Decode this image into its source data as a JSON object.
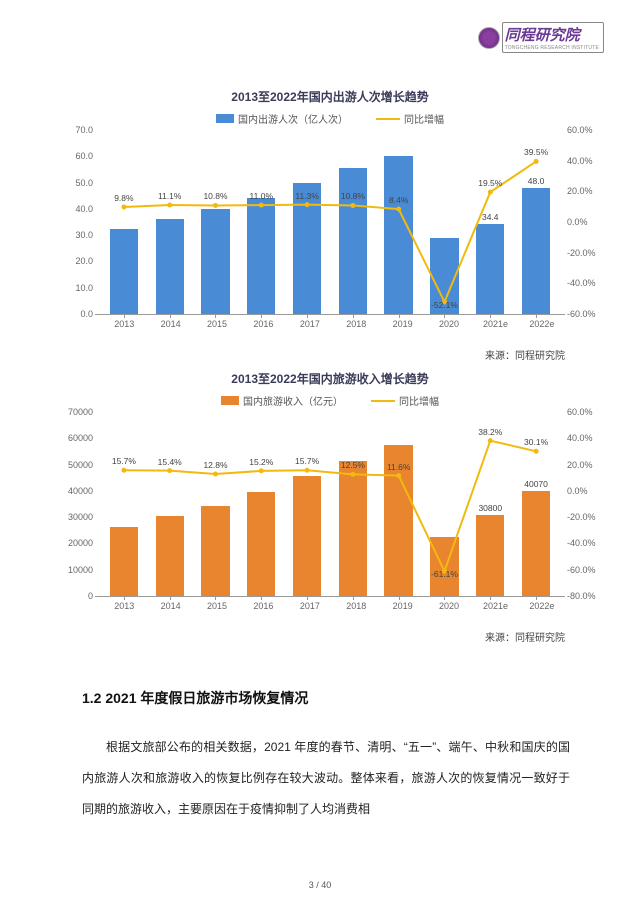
{
  "logo": {
    "text": "同程研究院",
    "sub": "TONGCHENG RESEARCH INSTITUTE"
  },
  "chart1": {
    "type": "bar+line",
    "title": "2013至2022年国内出游人次增长趋势",
    "legend_bar": "国内出游人次（亿人次）",
    "legend_line": "同比增幅",
    "bar_color": "#4a8bd6",
    "line_color": "#f2b90f",
    "grid_color": "#e0e0e0",
    "categories": [
      "2013",
      "2014",
      "2015",
      "2016",
      "2017",
      "2018",
      "2019",
      "2020",
      "2021e",
      "2022e"
    ],
    "y_left": {
      "min": 0,
      "max": 70,
      "step": 10,
      "labels": [
        "0.0",
        "10.0",
        "20.0",
        "30.0",
        "40.0",
        "50.0",
        "60.0",
        "70.0"
      ]
    },
    "y_right": {
      "min": -60,
      "max": 60,
      "step": 20,
      "labels": [
        "-60.0%",
        "-40.0%",
        "-20.0%",
        "0.0%",
        "20.0%",
        "40.0%",
        "60.0%"
      ]
    },
    "bars": [
      32.5,
      36.0,
      40.0,
      44.0,
      50.0,
      55.5,
      60.0,
      28.8,
      34.4,
      48.0
    ],
    "bar_labels": {
      "8": "34.4",
      "9": "48.0"
    },
    "line_vals": [
      9.8,
      11.1,
      10.8,
      11.0,
      11.3,
      10.8,
      8.4,
      -52.1,
      19.5,
      39.5
    ],
    "line_labels": [
      "9.8%",
      "11.1%",
      "10.8%",
      "11.0%",
      "11.3%",
      "10.8%",
      "8.4%",
      "-52.1%",
      "19.5%",
      "39.5%"
    ],
    "source": "来源：同程研究院"
  },
  "chart2": {
    "type": "bar+line",
    "title": "2013至2022年国内旅游收入增长趋势",
    "legend_bar": "国内旅游收入（亿元）",
    "legend_line": "同比增幅",
    "bar_color": "#e8852e",
    "line_color": "#f2b90f",
    "grid_color": "#e0e0e0",
    "categories": [
      "2013",
      "2014",
      "2015",
      "2016",
      "2017",
      "2018",
      "2019",
      "2020",
      "2021e",
      "2022e"
    ],
    "y_left": {
      "min": 0,
      "max": 70000,
      "step": 10000,
      "labels": [
        "0",
        "10000",
        "20000",
        "30000",
        "40000",
        "50000",
        "60000",
        "70000"
      ]
    },
    "y_right": {
      "min": -80,
      "max": 60,
      "step": 20,
      "labels": [
        "-80.0%",
        "-60.0%",
        "-40.0%",
        "-20.0%",
        "0.0%",
        "20.0%",
        "40.0%",
        "60.0%"
      ]
    },
    "bars": [
      26300,
      30300,
      34200,
      39400,
      45700,
      51300,
      57300,
      22300,
      30800,
      40070
    ],
    "bar_labels": {
      "8": "30800",
      "9": "40070"
    },
    "line_vals": [
      15.7,
      15.4,
      12.8,
      15.2,
      15.7,
      12.5,
      11.6,
      -61.1,
      38.2,
      30.1
    ],
    "line_labels": [
      "15.7%",
      "15.4%",
      "12.8%",
      "15.2%",
      "15.7%",
      "12.5%",
      "11.6%",
      "-61.1%",
      "38.2%",
      "30.1%"
    ],
    "source": "来源：同程研究院"
  },
  "heading": "1.2 2021 年度假日旅游市场恢复情况",
  "paragraph": "根据文旅部公布的相关数据，2021 年度的春节、清明、“五一”、端午、中秋和国庆的国内旅游人次和旅游收入的恢复比例存在较大波动。整体来看，旅游人次的恢复情况一致好于同期的旅游收入，主要原因在于疫情抑制了人均消费相",
  "footer": "3 / 40"
}
